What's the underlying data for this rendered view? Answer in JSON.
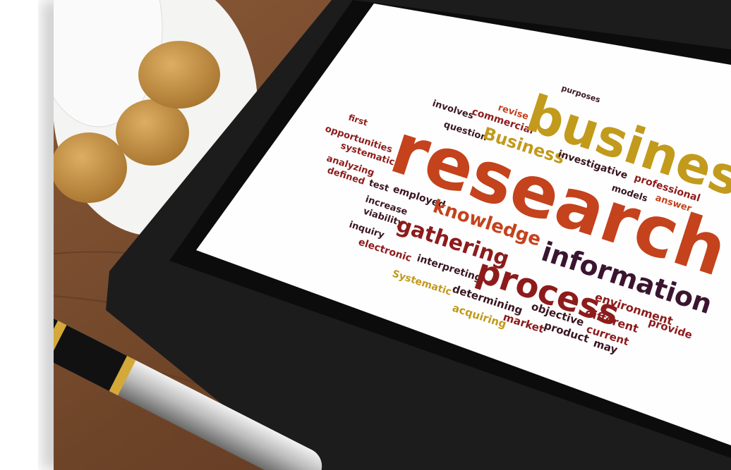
{
  "screen": {
    "words": [
      "purposes",
      "involves",
      "commercial",
      "revise",
      "business",
      "first",
      "opportunities",
      "question",
      "Business",
      "systematic",
      "analyzing",
      "defined",
      "research",
      "investigative",
      "professional",
      "models",
      "answer",
      "test",
      "employed",
      "increase",
      "viability",
      "inquiry",
      "knowledge",
      "gathering",
      "information",
      "electronic",
      "interpreting",
      "process",
      "Systematic",
      "determining",
      "acquiring",
      "market",
      "product",
      "objective",
      "environment",
      "provide",
      "different",
      "current",
      "may"
    ]
  }
}
